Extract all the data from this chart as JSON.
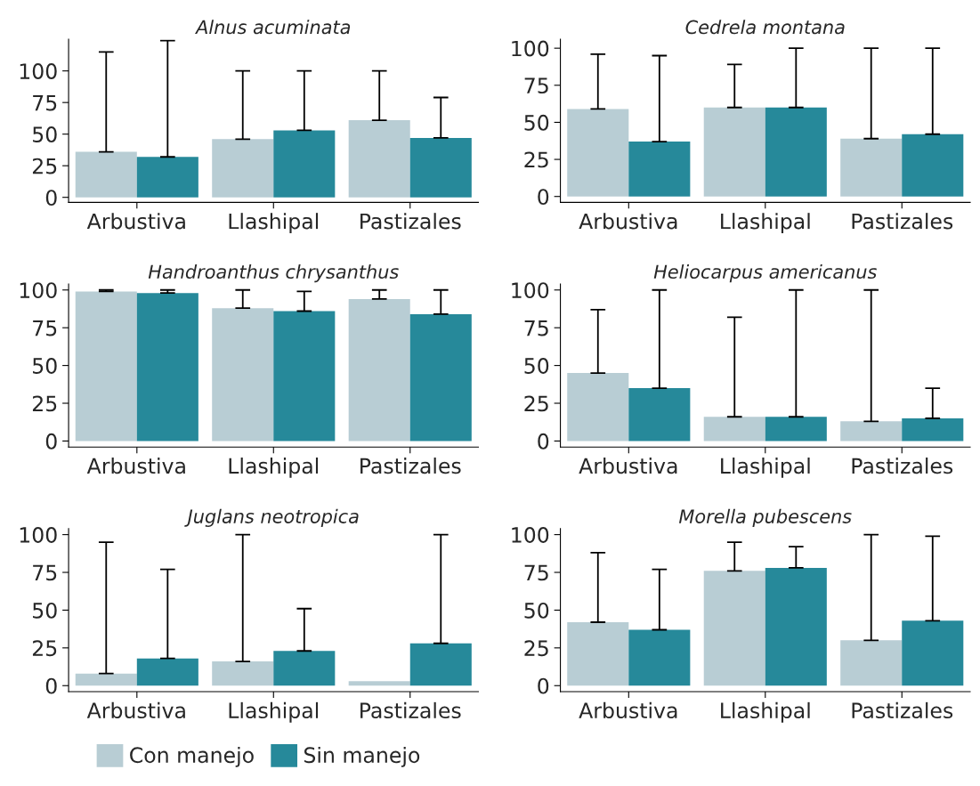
{
  "chart_data": [
    {
      "type": "bar",
      "title": "Alnus acuminata",
      "categories": [
        "Arbustiva",
        "Llashipal",
        "Pastizales"
      ],
      "ylim": [
        -4,
        125
      ],
      "yticks": [
        0,
        25,
        50,
        75,
        100
      ],
      "grid": false,
      "legend": "bottom",
      "series": [
        {
          "name": "Con manejo",
          "color": "#b8cdd4",
          "values": [
            36,
            46,
            61
          ],
          "errors": [
            [
              36,
              115
            ],
            [
              46,
              100
            ],
            [
              61,
              100
            ]
          ]
        },
        {
          "name": "Sin manejo",
          "color": "#26899a",
          "values": [
            32,
            53,
            47
          ],
          "errors": [
            [
              32,
              124
            ],
            [
              53,
              100
            ],
            [
              47,
              79
            ]
          ]
        }
      ]
    },
    {
      "type": "bar",
      "title": "Cedrela montana",
      "categories": [
        "Arbustiva",
        "Llashipal",
        "Pastizales"
      ],
      "ylim": [
        -4,
        106
      ],
      "yticks": [
        0,
        25,
        50,
        75,
        100
      ],
      "grid": false,
      "series": [
        {
          "color": "#b8cdd4",
          "values": [
            59,
            60,
            39
          ],
          "errors": [
            [
              59,
              96
            ],
            [
              60,
              89
            ],
            [
              39,
              100
            ]
          ]
        },
        {
          "color": "#26899a",
          "values": [
            37,
            60,
            42
          ],
          "errors": [
            [
              37,
              95
            ],
            [
              60,
              100
            ],
            [
              42,
              100
            ]
          ]
        }
      ]
    },
    {
      "type": "bar",
      "title": "Handroanthus chrysanthus",
      "categories": [
        "Arbustiva",
        "Llashipal",
        "Pastizales"
      ],
      "ylim": [
        -4,
        104
      ],
      "yticks": [
        0,
        25,
        50,
        75,
        100
      ],
      "grid": false,
      "series": [
        {
          "color": "#b8cdd4",
          "values": [
            99,
            88,
            94
          ],
          "errors": [
            [
              99,
              100
            ],
            [
              88,
              100
            ],
            [
              94,
              100
            ]
          ]
        },
        {
          "color": "#26899a",
          "values": [
            98,
            86,
            84
          ],
          "errors": [
            [
              98,
              100
            ],
            [
              86,
              99
            ],
            [
              84,
              100
            ]
          ]
        }
      ]
    },
    {
      "type": "bar",
      "title": "Heliocarpus americanus",
      "categories": [
        "Arbustiva",
        "Llashipal",
        "Pastizales"
      ],
      "ylim": [
        -4,
        104
      ],
      "yticks": [
        0,
        25,
        50,
        75,
        100
      ],
      "grid": false,
      "series": [
        {
          "color": "#b8cdd4",
          "values": [
            45,
            16,
            13
          ],
          "errors": [
            [
              45,
              87
            ],
            [
              16,
              82
            ],
            [
              13,
              100
            ]
          ]
        },
        {
          "color": "#26899a",
          "values": [
            35,
            16,
            15
          ],
          "errors": [
            [
              35,
              100
            ],
            [
              16,
              100
            ],
            [
              15,
              35
            ]
          ]
        }
      ]
    },
    {
      "type": "bar",
      "title": "Juglans neotropica",
      "categories": [
        "Arbustiva",
        "Llashipal",
        "Pastizales"
      ],
      "ylim": [
        -4,
        104
      ],
      "yticks": [
        0,
        25,
        50,
        75,
        100
      ],
      "grid": false,
      "series": [
        {
          "color": "#b8cdd4",
          "values": [
            8,
            16,
            3
          ],
          "errors": [
            [
              8,
              95
            ],
            [
              16,
              100
            ],
            null
          ]
        },
        {
          "color": "#26899a",
          "values": [
            18,
            23,
            28
          ],
          "errors": [
            [
              18,
              77
            ],
            [
              23,
              51
            ],
            [
              28,
              100
            ]
          ]
        }
      ]
    },
    {
      "type": "bar",
      "title": "Morella pubescens",
      "categories": [
        "Arbustiva",
        "Llashipal",
        "Pastizales"
      ],
      "ylim": [
        -4,
        104
      ],
      "yticks": [
        0,
        25,
        50,
        75,
        100
      ],
      "grid": false,
      "series": [
        {
          "color": "#b8cdd4",
          "values": [
            42,
            76,
            30
          ],
          "errors": [
            [
              42,
              88
            ],
            [
              76,
              95
            ],
            [
              30,
              100
            ]
          ]
        },
        {
          "color": "#26899a",
          "values": [
            37,
            78,
            43
          ],
          "errors": [
            [
              37,
              77
            ],
            [
              78,
              92
            ],
            [
              43,
              99
            ]
          ]
        }
      ]
    }
  ]
}
